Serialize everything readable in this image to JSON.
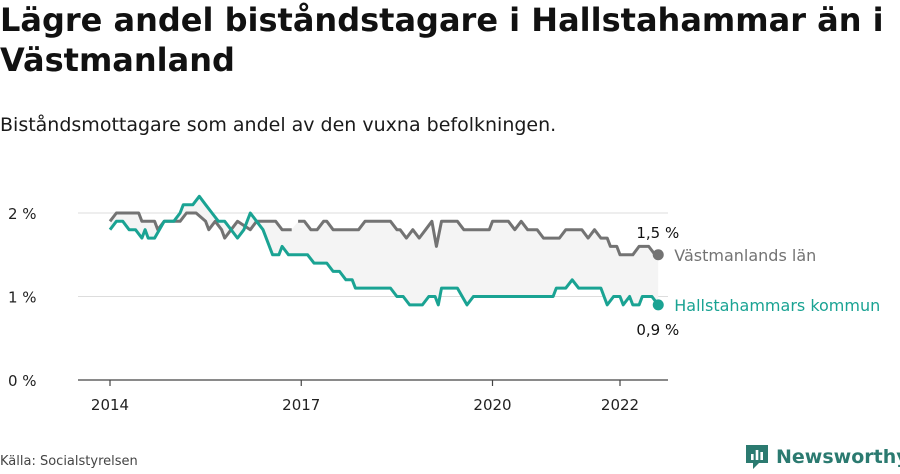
{
  "header": {
    "title": "Lägre andel biståndstagare i Hallstahammar än i Västmanland",
    "subtitle": "Biståndsmottagare som andel av den vuxna befolkningen."
  },
  "footer": {
    "source": "Källa: Socialstyrelsen",
    "brand": "Newsworthy",
    "brand_icon": "newsworthy-logo-icon"
  },
  "chart_data": {
    "type": "line",
    "x_unit": "year (monthly data)",
    "xlim": [
      2013.4,
      2023.8
    ],
    "ylim": [
      0,
      2.2
    ],
    "y_ticks": [
      {
        "value": 0,
        "label": "0 %"
      },
      {
        "value": 1,
        "label": "1 %"
      },
      {
        "value": 2,
        "label": "2 %"
      }
    ],
    "x_ticks": [
      {
        "value": 2014,
        "label": "2014"
      },
      {
        "value": 2017,
        "label": "2017"
      },
      {
        "value": 2020,
        "label": "2020"
      },
      {
        "value": 2022,
        "label": "2022"
      }
    ],
    "grid": true,
    "shaded_gap_between_series": true,
    "series": [
      {
        "name": "Västmanlands län",
        "color": "#737373",
        "end_label": "1,5 %",
        "points": [
          [
            2014.0,
            1.9
          ],
          [
            2014.1,
            2.0
          ],
          [
            2014.2,
            2.0
          ],
          [
            2014.3,
            2.0
          ],
          [
            2014.45,
            2.0
          ],
          [
            2014.5,
            1.9
          ],
          [
            2014.7,
            1.9
          ],
          [
            2014.75,
            1.8
          ],
          [
            2014.85,
            1.9
          ],
          [
            2015.0,
            1.9
          ],
          [
            2015.1,
            1.9
          ],
          [
            2015.2,
            2.0
          ],
          [
            2015.35,
            2.0
          ],
          [
            2015.5,
            1.9
          ],
          [
            2015.55,
            1.8
          ],
          [
            2015.65,
            1.9
          ],
          [
            2015.75,
            1.8
          ],
          [
            2015.8,
            1.7
          ],
          [
            2015.9,
            1.8
          ],
          [
            2016.0,
            1.9
          ],
          [
            2016.2,
            1.8
          ],
          [
            2016.3,
            1.9
          ],
          [
            2016.6,
            1.9
          ],
          [
            2016.7,
            1.8
          ],
          [
            2016.85,
            1.8
          ],
          null,
          [
            2016.95,
            1.9
          ],
          [
            2017.05,
            1.9
          ],
          [
            2017.15,
            1.8
          ],
          [
            2017.25,
            1.8
          ],
          [
            2017.35,
            1.9
          ],
          [
            2017.4,
            1.9
          ],
          [
            2017.5,
            1.8
          ],
          [
            2017.9,
            1.8
          ],
          [
            2018.0,
            1.9
          ],
          [
            2018.4,
            1.9
          ],
          [
            2018.5,
            1.8
          ],
          [
            2018.55,
            1.8
          ],
          [
            2018.65,
            1.7
          ],
          [
            2018.75,
            1.8
          ],
          [
            2018.85,
            1.7
          ],
          [
            2018.95,
            1.8
          ],
          [
            2019.05,
            1.9
          ],
          [
            2019.12,
            1.6
          ],
          [
            2019.2,
            1.9
          ],
          [
            2019.45,
            1.9
          ],
          [
            2019.55,
            1.8
          ],
          [
            2019.95,
            1.8
          ],
          [
            2020.0,
            1.9
          ],
          [
            2020.25,
            1.9
          ],
          [
            2020.35,
            1.8
          ],
          [
            2020.45,
            1.9
          ],
          [
            2020.55,
            1.8
          ],
          [
            2020.7,
            1.8
          ],
          [
            2020.8,
            1.7
          ],
          [
            2021.05,
            1.7
          ],
          [
            2021.15,
            1.8
          ],
          [
            2021.4,
            1.8
          ],
          [
            2021.5,
            1.7
          ],
          [
            2021.6,
            1.8
          ],
          [
            2021.7,
            1.7
          ],
          [
            2021.8,
            1.7
          ],
          [
            2021.85,
            1.6
          ],
          [
            2021.95,
            1.6
          ],
          [
            2022.0,
            1.5
          ],
          [
            2022.15,
            1.5
          ],
          [
            2022.2,
            1.5
          ],
          [
            2022.3,
            1.6
          ],
          [
            2022.45,
            1.6
          ],
          [
            2022.55,
            1.5
          ],
          [
            2022.6,
            1.5
          ]
        ]
      },
      {
        "name": "Hallstahammars kommun",
        "color": "#1aa393",
        "end_label": "0,9 %",
        "points": [
          [
            2014.0,
            1.8
          ],
          [
            2014.1,
            1.9
          ],
          [
            2014.2,
            1.9
          ],
          [
            2014.3,
            1.8
          ],
          [
            2014.4,
            1.8
          ],
          [
            2014.5,
            1.7
          ],
          [
            2014.55,
            1.8
          ],
          [
            2014.6,
            1.7
          ],
          [
            2014.7,
            1.7
          ],
          [
            2014.85,
            1.9
          ],
          [
            2015.0,
            1.9
          ],
          [
            2015.1,
            2.0
          ],
          [
            2015.15,
            2.1
          ],
          [
            2015.3,
            2.1
          ],
          [
            2015.4,
            2.2
          ],
          [
            2015.5,
            2.1
          ],
          [
            2015.6,
            2.0
          ],
          [
            2015.7,
            1.9
          ],
          [
            2015.8,
            1.9
          ],
          [
            2015.9,
            1.8
          ],
          [
            2016.0,
            1.7
          ],
          [
            2016.1,
            1.8
          ],
          [
            2016.2,
            2.0
          ],
          [
            2016.3,
            1.9
          ],
          [
            2016.4,
            1.8
          ],
          [
            2016.55,
            1.5
          ],
          [
            2016.65,
            1.5
          ],
          [
            2016.7,
            1.6
          ],
          [
            2016.8,
            1.5
          ],
          [
            2017.0,
            1.5
          ],
          [
            2017.1,
            1.5
          ],
          [
            2017.2,
            1.4
          ],
          [
            2017.4,
            1.4
          ],
          [
            2017.5,
            1.3
          ],
          [
            2017.6,
            1.3
          ],
          [
            2017.7,
            1.2
          ],
          [
            2017.8,
            1.2
          ],
          [
            2017.85,
            1.1
          ],
          [
            2018.2,
            1.1
          ],
          [
            2018.4,
            1.1
          ],
          [
            2018.5,
            1.0
          ],
          [
            2018.6,
            1.0
          ],
          [
            2018.7,
            0.9
          ],
          [
            2018.9,
            0.9
          ],
          [
            2019.0,
            1.0
          ],
          [
            2019.1,
            1.0
          ],
          [
            2019.15,
            0.9
          ],
          [
            2019.2,
            1.1
          ],
          [
            2019.45,
            1.1
          ],
          [
            2019.6,
            0.9
          ],
          [
            2019.7,
            1.0
          ],
          [
            2020.0,
            1.0
          ],
          [
            2020.5,
            1.0
          ],
          [
            2020.8,
            1.0
          ],
          [
            2020.95,
            1.0
          ],
          [
            2021.0,
            1.1
          ],
          [
            2021.1,
            1.1
          ],
          [
            2021.15,
            1.1
          ],
          [
            2021.25,
            1.2
          ],
          [
            2021.35,
            1.1
          ],
          [
            2021.7,
            1.1
          ],
          [
            2021.8,
            0.9
          ],
          [
            2021.9,
            1.0
          ],
          [
            2022.0,
            1.0
          ],
          [
            2022.05,
            0.9
          ],
          [
            2022.15,
            1.0
          ],
          [
            2022.2,
            0.9
          ],
          [
            2022.3,
            0.9
          ],
          [
            2022.35,
            1.0
          ],
          [
            2022.5,
            1.0
          ],
          [
            2022.6,
            0.9
          ]
        ]
      }
    ]
  }
}
